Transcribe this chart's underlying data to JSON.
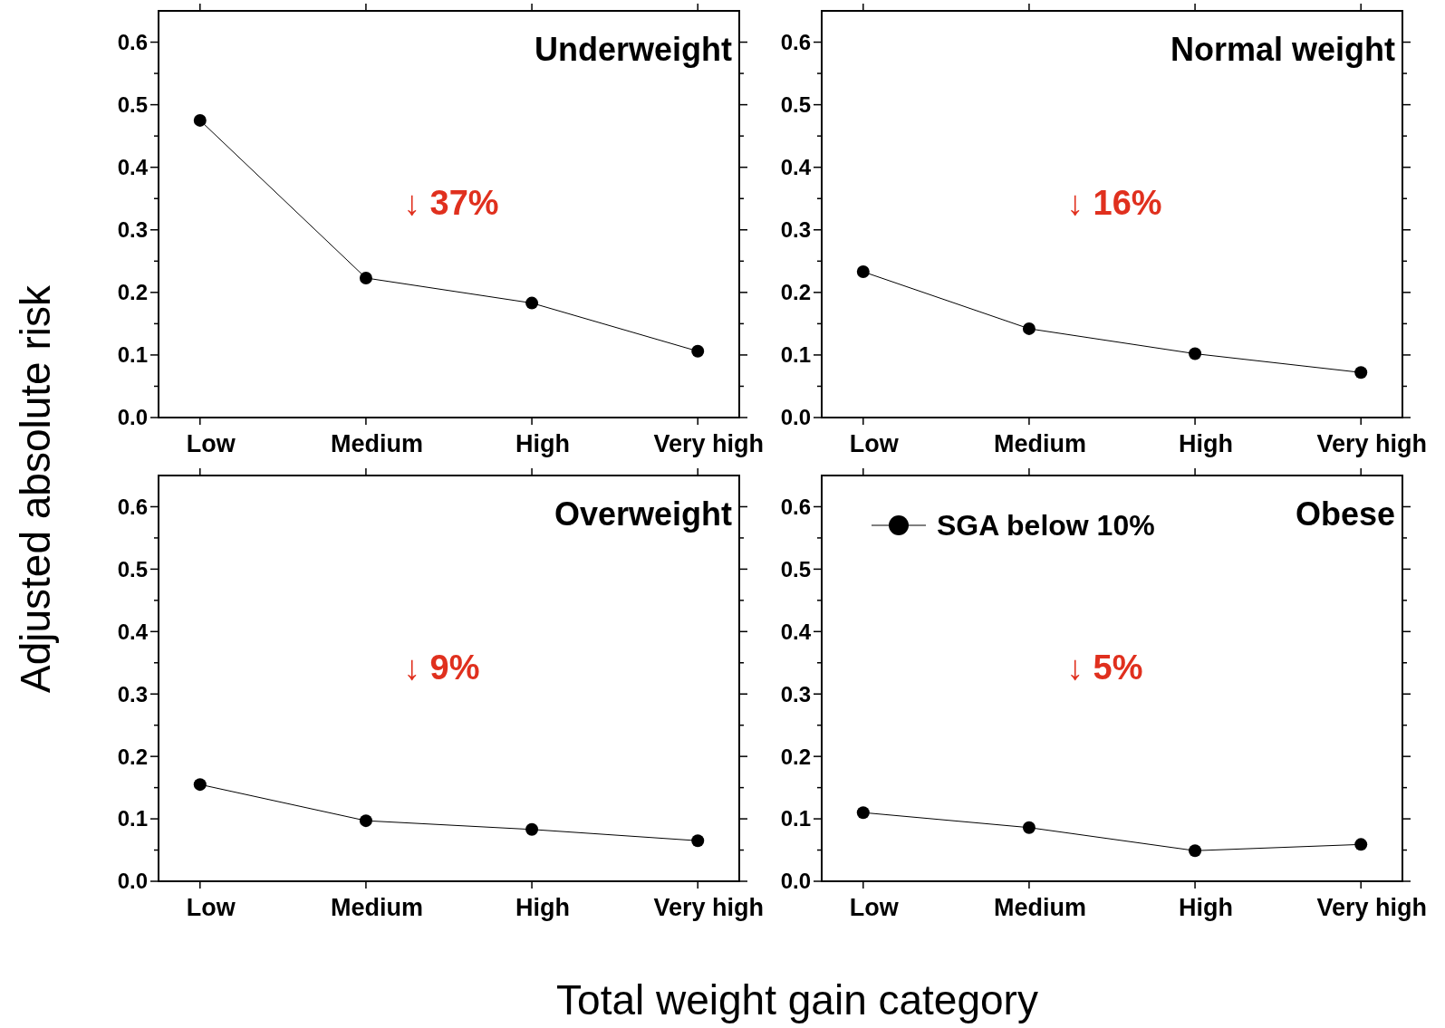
{
  "chart_data": [
    {
      "type": "line",
      "title": "Underweight",
      "ylabel": "Adjusted absolute risk",
      "categories": [
        "Low",
        "Medium",
        "High",
        "Very high"
      ],
      "series": [
        {
          "color": "#000000",
          "values": [
            0.475,
            0.223,
            0.183,
            0.106
          ]
        }
      ],
      "ylim": [
        0,
        0.65
      ],
      "yticks": [
        {
          "value": 0,
          "label": "0.0"
        },
        {
          "value": 0.05,
          "label": null
        },
        0.1,
        {
          "value": 0.15,
          "label": null
        },
        0.2,
        {
          "value": 0.25,
          "label": null
        },
        0.3,
        {
          "value": 0.35,
          "label": null
        },
        0.4,
        {
          "value": 0.45,
          "label": null
        },
        0.5,
        {
          "value": 0.55,
          "label": null
        },
        0.6
      ],
      "marker": "circle",
      "grid": false,
      "legend": false,
      "annotations": [
        "↓ 37%"
      ]
    },
    {
      "type": "line",
      "title": "Normal weight",
      "categories": [
        "Low",
        "Medium",
        "High",
        "Very high"
      ],
      "series": [
        {
          "color": "#000000",
          "values": [
            0.233,
            0.142,
            0.102,
            0.072
          ]
        }
      ],
      "ylim": [
        0,
        0.65
      ],
      "yticks": [
        {
          "value": 0,
          "label": "0.0"
        },
        {
          "value": 0.05,
          "label": null
        },
        0.1,
        {
          "value": 0.15,
          "label": null
        },
        0.2,
        {
          "value": 0.25,
          "label": null
        },
        0.3,
        {
          "value": 0.35,
          "label": null
        },
        0.4,
        {
          "value": 0.45,
          "label": null
        },
        0.5,
        {
          "value": 0.55,
          "label": null
        },
        0.6
      ],
      "marker": "circle",
      "grid": false,
      "legend": false,
      "annotations": [
        "↓ 16%"
      ]
    },
    {
      "type": "line",
      "title": "Overweight",
      "xlabel": "Total weight gain category",
      "categories": [
        "Low",
        "Medium",
        "High",
        "Very high"
      ],
      "series": [
        {
          "color": "#000000",
          "values": [
            0.155,
            0.097,
            0.083,
            0.065
          ]
        }
      ],
      "ylim": [
        0,
        0.65
      ],
      "yticks": [
        {
          "value": 0,
          "label": "0.0"
        },
        {
          "value": 0.05,
          "label": null
        },
        0.1,
        {
          "value": 0.15,
          "label": null
        },
        0.2,
        {
          "value": 0.25,
          "label": null
        },
        0.3,
        {
          "value": 0.35,
          "label": null
        },
        0.4,
        {
          "value": 0.45,
          "label": null
        },
        0.5,
        {
          "value": 0.55,
          "label": null
        },
        0.6
      ],
      "marker": "circle",
      "grid": false,
      "legend": false,
      "annotations": [
        "↓ 9%"
      ]
    },
    {
      "type": "line",
      "title": "Obese",
      "categories": [
        "Low",
        "Medium",
        "High",
        "Very high"
      ],
      "series": [
        {
          "name": "SGA below 10%",
          "color": "#000000",
          "values": [
            0.11,
            0.086,
            0.049,
            0.059
          ]
        }
      ],
      "ylim": [
        0,
        0.65
      ],
      "yticks": [
        {
          "value": 0,
          "label": "0.0"
        },
        {
          "value": 0.05,
          "label": null
        },
        0.1,
        {
          "value": 0.15,
          "label": null
        },
        0.2,
        {
          "value": 0.25,
          "label": null
        },
        0.3,
        {
          "value": 0.35,
          "label": null
        },
        0.4,
        {
          "value": 0.45,
          "label": null
        },
        0.5,
        {
          "value": 0.55,
          "label": null
        },
        0.6
      ],
      "marker": "circle",
      "grid": false,
      "legend": "top left",
      "annotations": [
        "↓ 5%"
      ]
    }
  ]
}
